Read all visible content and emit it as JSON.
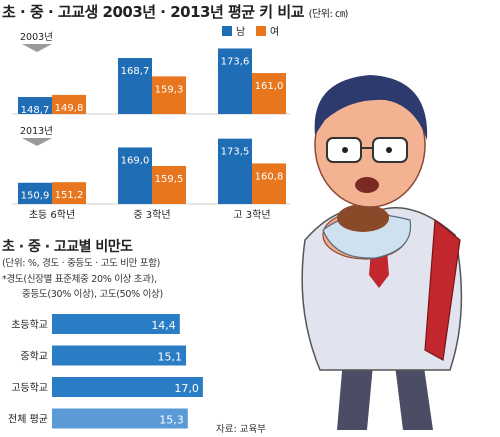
{
  "header": {
    "title": "초 · 중 · 고교생 2003년 · 2013년 평균 키 비교",
    "unit": "(단위: ㎝)"
  },
  "legend": {
    "male": "남",
    "female": "여"
  },
  "colors": {
    "male": "#1e6db5",
    "female": "#e8761f",
    "hbar": "#2a7cc4",
    "hbar_light": "#5a9ad6",
    "year_tag": "#9a9a9a"
  },
  "chart_data": [
    {
      "type": "bar",
      "categories": [
        "초등 6학년",
        "중 3학년",
        "고 3학년"
      ],
      "year_labels": [
        "2003년",
        "2013년"
      ],
      "series": [
        {
          "name": "남",
          "values_2003": [
            148.7,
            168.7,
            173.6
          ],
          "values_2013": [
            150.9,
            169.0,
            173.5
          ],
          "labels_2003": [
            "148,7",
            "168,7",
            "173,6"
          ],
          "labels_2013": [
            "150,9",
            "169,0",
            "173,5"
          ]
        },
        {
          "name": "여",
          "values_2003": [
            149.8,
            159.3,
            161.0
          ],
          "values_2013": [
            151.2,
            159.5,
            160.8
          ],
          "labels_2003": [
            "149,8",
            "159,3",
            "161,0"
          ],
          "labels_2013": [
            "151,2",
            "159,5",
            "160,8"
          ]
        }
      ],
      "ylim": [
        140,
        180
      ]
    },
    {
      "type": "bar",
      "title": "초 · 중 · 고교별 비만도",
      "categories": [
        "초등학교",
        "중학교",
        "고등학교",
        "전체 평균"
      ],
      "values": [
        14.4,
        15.1,
        17.0,
        15.3
      ],
      "labels": [
        "14,4",
        "15,1",
        "17,0",
        "15,3"
      ],
      "xlim": [
        0,
        17.8
      ]
    }
  ],
  "notes": {
    "unit": "(단위: %, 경도 · 중등도 · 고도 비만 포함)",
    "line1": "*경도(신장별 표준체중 20% 이상 초과),",
    "line2": "중등도(30% 이상), 고도(50% 이상)"
  },
  "source": "자료: 교육부"
}
